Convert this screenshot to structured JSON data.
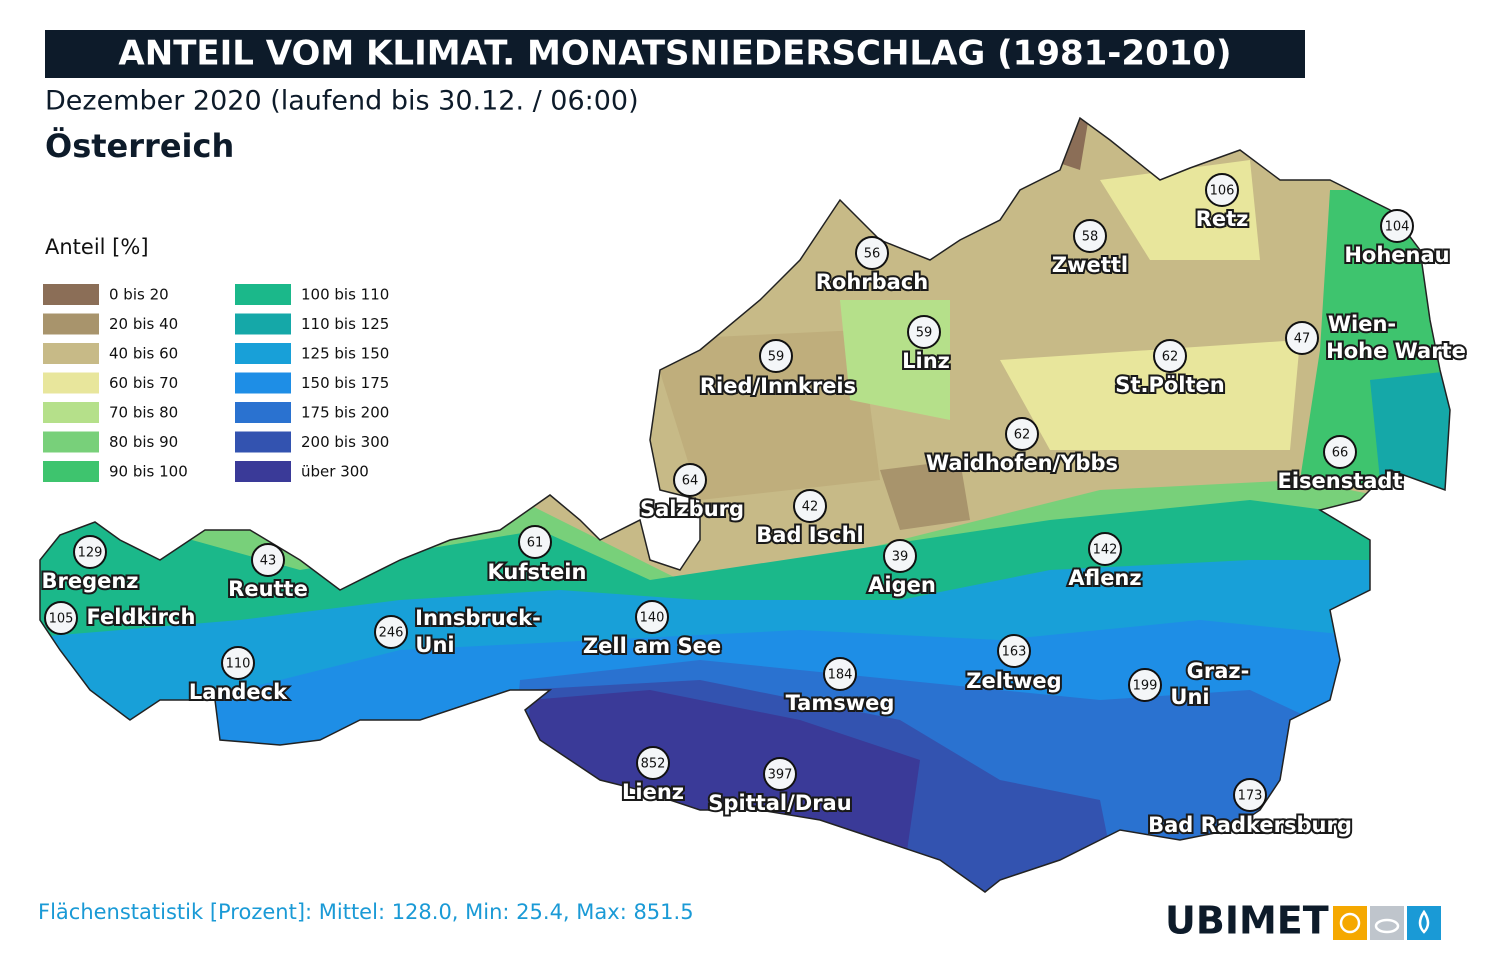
{
  "header": {
    "title": "ANTEIL VOM KLIMAT. MONATSNIEDERSCHLAG (1981-2010)",
    "subtitle": "Dezember 2020 (laufend bis 30.12. / 06:00)",
    "region": "Österreich"
  },
  "legend": {
    "title": "Anteil [%]",
    "items": [
      {
        "label": "0 bis 20",
        "color": "#8b6e57"
      },
      {
        "label": "20 bis 40",
        "color": "#a8946c"
      },
      {
        "label": "40 bis 60",
        "color": "#c7ba87"
      },
      {
        "label": "60 bis 70",
        "color": "#e8e69c"
      },
      {
        "label": "70 bis 80",
        "color": "#b5e08a"
      },
      {
        "label": "80 bis 90",
        "color": "#78d07a"
      },
      {
        "label": "90 bis 100",
        "color": "#3ec46e"
      },
      {
        "label": "100 bis 110",
        "color": "#1bb88a"
      },
      {
        "label": "110 bis 125",
        "color": "#15a8a8"
      },
      {
        "label": "125 bis 150",
        "color": "#18a0d8"
      },
      {
        "label": "150 bis 175",
        "color": "#1e8ee6"
      },
      {
        "label": "175 bis 200",
        "color": "#2a72d0"
      },
      {
        "label": "200 bis 300",
        "color": "#3353b0"
      },
      {
        "label": "über 300",
        "color": "#3a3a98"
      }
    ]
  },
  "stations": [
    {
      "name": "Retz",
      "value": 106
    },
    {
      "name": "Zwettl",
      "value": 58
    },
    {
      "name": "Hohenau",
      "value": 104
    },
    {
      "name": "Rohrbach",
      "value": 56
    },
    {
      "name": "Linz",
      "value": 59
    },
    {
      "name": "Ried/Innkreis",
      "value": 59
    },
    {
      "name": "St.Pölten",
      "value": 62
    },
    {
      "name": [
        "Wien-",
        "Hohe Warte"
      ],
      "value": 47
    },
    {
      "name": "Waidhofen/Ybbs",
      "value": 62
    },
    {
      "name": "Eisenstadt",
      "value": 66
    },
    {
      "name": "Salzburg",
      "value": 64
    },
    {
      "name": "Bad Ischl",
      "value": 42
    },
    {
      "name": "Aigen",
      "value": 39
    },
    {
      "name": "Aflenz",
      "value": 142
    },
    {
      "name": "Kufstein",
      "value": 61
    },
    {
      "name": "Reutte",
      "value": 43
    },
    {
      "name": "Bregenz",
      "value": 129
    },
    {
      "name": "Feldkirch",
      "value": 105
    },
    {
      "name": [
        "Innsbruck-",
        "Uni"
      ],
      "value": 246
    },
    {
      "name": "Zell am See",
      "value": 140
    },
    {
      "name": "Landeck",
      "value": 110
    },
    {
      "name": "Tamsweg",
      "value": 184
    },
    {
      "name": "Zeltweg",
      "value": 163
    },
    {
      "name": [
        "Graz-",
        "Uni"
      ],
      "value": 199
    },
    {
      "name": "Lienz",
      "value": 852
    },
    {
      "name": "Spittal/Drau",
      "value": 397
    },
    {
      "name": "Bad Radkersburg",
      "value": 173
    }
  ],
  "footer": {
    "statistics": "Flächenstatistik [Prozent]: Mittel: 128.0, Min: 25.4, Max: 851.5",
    "brand": "UBIMET"
  }
}
